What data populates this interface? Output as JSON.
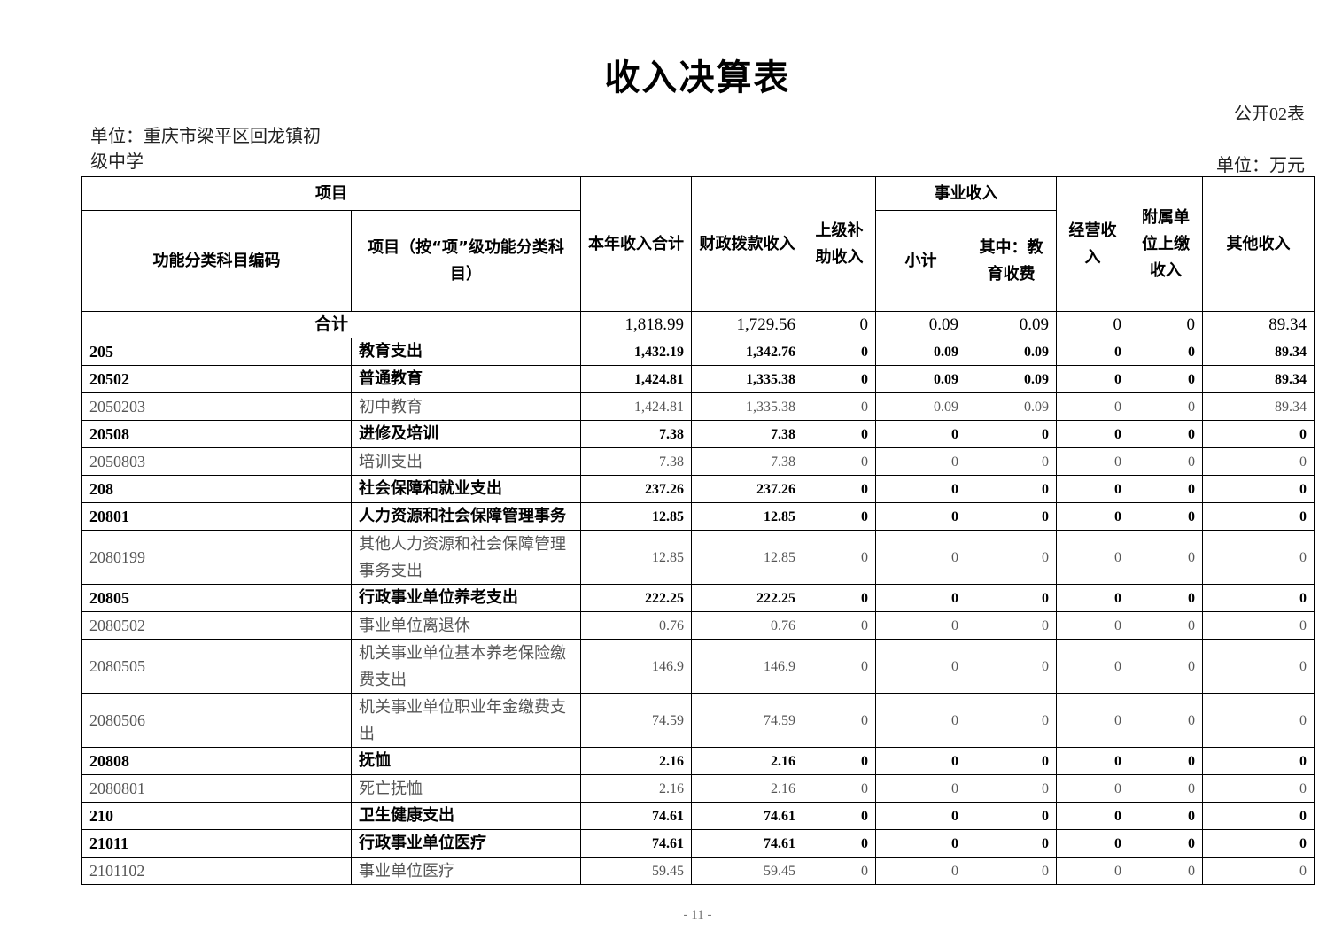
{
  "title": "收入决算表",
  "form_no": "公开02表",
  "unit_name": "单位：重庆市梁平区回龙镇初级中学",
  "unit_measure": "单位：万元",
  "headers": {
    "project": "项目",
    "code": "功能分类科目编码",
    "name": "项目（按“项”级功能分类科目）",
    "total": "本年收入合计",
    "fiscal": "财政拨款收入",
    "superior": "上级补助收入",
    "business_group": "事业收入",
    "business_subtotal": "小计",
    "business_edu": "其中：教育收费",
    "operating": "经营收入",
    "affiliated": "附属单位上缴收入",
    "other": "其他收入"
  },
  "total_row": {
    "label": "合计",
    "values": [
      "1,818.99",
      "1,729.56",
      "0",
      "0.09",
      "0.09",
      "0",
      "0",
      "89.34"
    ]
  },
  "rows": [
    {
      "code": "205",
      "name": "教育支出",
      "bold": true,
      "values": [
        "1,432.19",
        "1,342.76",
        "0",
        "0.09",
        "0.09",
        "0",
        "0",
        "89.34"
      ]
    },
    {
      "code": "20502",
      "name": "普通教育",
      "bold": true,
      "values": [
        "1,424.81",
        "1,335.38",
        "0",
        "0.09",
        "0.09",
        "0",
        "0",
        "89.34"
      ]
    },
    {
      "code": "2050203",
      "name": "初中教育",
      "bold": false,
      "values": [
        "1,424.81",
        "1,335.38",
        "0",
        "0.09",
        "0.09",
        "0",
        "0",
        "89.34"
      ]
    },
    {
      "code": "20508",
      "name": "进修及培训",
      "bold": true,
      "values": [
        "7.38",
        "7.38",
        "0",
        "0",
        "0",
        "0",
        "0",
        "0"
      ]
    },
    {
      "code": "2050803",
      "name": "培训支出",
      "bold": false,
      "values": [
        "7.38",
        "7.38",
        "0",
        "0",
        "0",
        "0",
        "0",
        "0"
      ]
    },
    {
      "code": "208",
      "name": "社会保障和就业支出",
      "bold": true,
      "values": [
        "237.26",
        "237.26",
        "0",
        "0",
        "0",
        "0",
        "0",
        "0"
      ]
    },
    {
      "code": "20801",
      "name": "人力资源和社会保障管理事务",
      "bold": true,
      "values": [
        "12.85",
        "12.85",
        "0",
        "0",
        "0",
        "0",
        "0",
        "0"
      ]
    },
    {
      "code": "2080199",
      "name": "其他人力资源和社会保障管理事务支出",
      "bold": false,
      "values": [
        "12.85",
        "12.85",
        "0",
        "0",
        "0",
        "0",
        "0",
        "0"
      ]
    },
    {
      "code": "20805",
      "name": "行政事业单位养老支出",
      "bold": true,
      "values": [
        "222.25",
        "222.25",
        "0",
        "0",
        "0",
        "0",
        "0",
        "0"
      ]
    },
    {
      "code": "2080502",
      "name": "事业单位离退休",
      "bold": false,
      "values": [
        "0.76",
        "0.76",
        "0",
        "0",
        "0",
        "0",
        "0",
        "0"
      ]
    },
    {
      "code": "2080505",
      "name": "机关事业单位基本养老保险缴费支出",
      "bold": false,
      "values": [
        "146.9",
        "146.9",
        "0",
        "0",
        "0",
        "0",
        "0",
        "0"
      ]
    },
    {
      "code": "2080506",
      "name": "机关事业单位职业年金缴费支出",
      "bold": false,
      "values": [
        "74.59",
        "74.59",
        "0",
        "0",
        "0",
        "0",
        "0",
        "0"
      ]
    },
    {
      "code": "20808",
      "name": "抚恤",
      "bold": true,
      "values": [
        "2.16",
        "2.16",
        "0",
        "0",
        "0",
        "0",
        "0",
        "0"
      ]
    },
    {
      "code": "2080801",
      "name": "死亡抚恤",
      "bold": false,
      "values": [
        "2.16",
        "2.16",
        "0",
        "0",
        "0",
        "0",
        "0",
        "0"
      ]
    },
    {
      "code": "210",
      "name": "卫生健康支出",
      "bold": true,
      "values": [
        "74.61",
        "74.61",
        "0",
        "0",
        "0",
        "0",
        "0",
        "0"
      ]
    },
    {
      "code": "21011",
      "name": "行政事业单位医疗",
      "bold": true,
      "values": [
        "74.61",
        "74.61",
        "0",
        "0",
        "0",
        "0",
        "0",
        "0"
      ]
    },
    {
      "code": "2101102",
      "name": "事业单位医疗",
      "bold": false,
      "values": [
        "59.45",
        "59.45",
        "0",
        "0",
        "0",
        "0",
        "0",
        "0"
      ]
    }
  ],
  "footer": "- 11 -"
}
